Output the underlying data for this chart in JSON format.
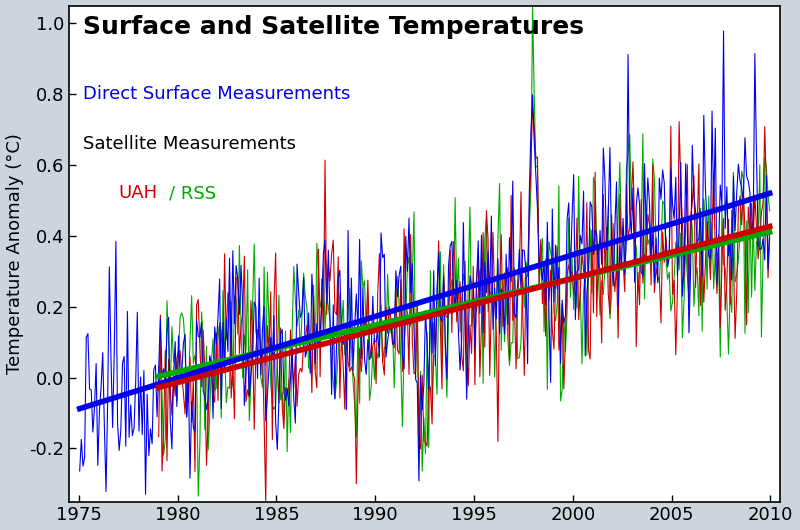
{
  "title": "Surface and Satellite Temperatures",
  "ylabel": "Temperature Anomaly (°C)",
  "xlim": [
    1974.5,
    2010.5
  ],
  "ylim": [
    -0.35,
    1.05
  ],
  "yticks": [
    -0.2,
    0.0,
    0.2,
    0.4,
    0.6,
    0.8,
    1.0
  ],
  "xticks": [
    1975,
    1980,
    1985,
    1990,
    1995,
    2000,
    2005,
    2010
  ],
  "background_color": "#cdd5dc",
  "plot_bg_color": "#ffffff",
  "surface_color": "#0000ee",
  "uah_color": "#cc0000",
  "rss_color": "#00aa00",
  "trend_surface_color": "#0000ee",
  "trend_uah_color": "#cc0000",
  "trend_rss_color": "#00aa00",
  "legend_color_surface": "#0000ee",
  "legend_color_satellite": "#000000",
  "legend_color_uah": "#cc0000",
  "legend_color_rss": "#00aa00",
  "trend_lw": 4.0,
  "data_lw": 0.8,
  "title_fontsize": 18,
  "legend_fontsize": 13,
  "tick_fontsize": 13,
  "ylabel_fontsize": 13
}
